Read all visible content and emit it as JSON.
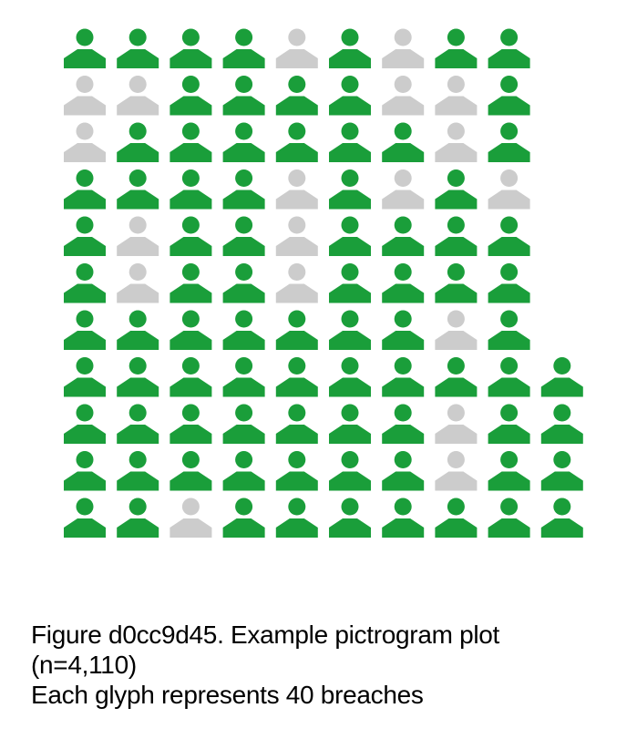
{
  "chart_data": {
    "type": "pictogram",
    "title": "Figure d0cc9d45. Example pictrogram plot",
    "subtitle": "(n=4,110)",
    "note": "Each glyph represents 40 breaches",
    "units_per_glyph": 40,
    "total": 4110,
    "colors": {
      "highlight": "#1a9e3a",
      "muted": "#cccccc"
    },
    "columns": [
      {
        "highlighted": 9,
        "muted": 2
      },
      {
        "highlighted": 7,
        "muted": 4
      },
      {
        "highlighted": 10,
        "muted": 1
      },
      {
        "highlighted": 11,
        "muted": 0
      },
      {
        "highlighted": 6,
        "muted": 5
      },
      {
        "highlighted": 11,
        "muted": 0
      },
      {
        "highlighted": 8,
        "muted": 3
      },
      {
        "highlighted": 5,
        "muted": 6
      },
      {
        "highlighted": 10,
        "muted": 1
      },
      {
        "highlighted": 4,
        "muted": 0
      }
    ]
  },
  "grid": {
    "cells": [
      "GGGGLGLGG",
      "LLGGGGLLG",
      "LGGGGGGLG",
      "GGGGLGLGL",
      "GLGGLGGGG",
      "GLGGLGGGG",
      "GGGGGGGLG",
      "GGGGGGGGGG",
      "GGGGGGGLGG",
      "GGGGGGGLGG",
      "GGLGGGGGGG"
    ]
  }
}
